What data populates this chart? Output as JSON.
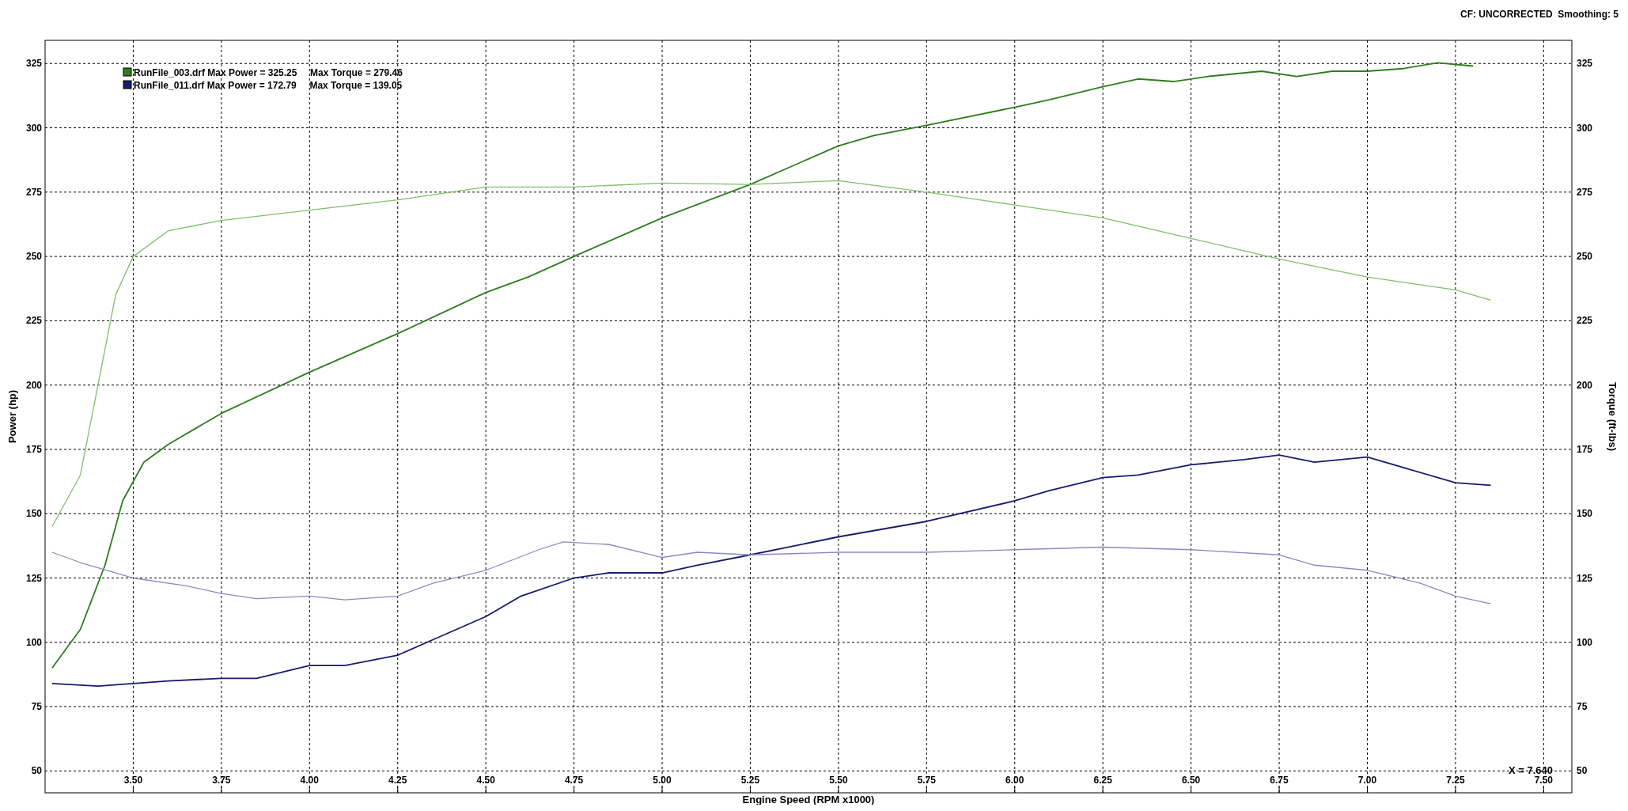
{
  "chart_data": {
    "type": "line",
    "xlabel": "Engine Speed (RPM x1000)",
    "ylabel": "Power (hp)",
    "y2label": "Torque (ft-lbs)",
    "annotations": [
      "CF: UNCORRECTED  Smoothing: 5",
      "X = 7.640"
    ],
    "xlim": [
      3.25,
      7.58
    ],
    "ylim": [
      41.5,
      334
    ],
    "y2lim": [
      41.5,
      334
    ],
    "xticks": [
      {
        "value": 3.5,
        "label": "3.50"
      },
      {
        "value": 3.75,
        "label": "3.75"
      },
      {
        "value": 4,
        "label": "4.00"
      },
      {
        "value": 4.25,
        "label": "4.25"
      },
      {
        "value": 4.5,
        "label": "4.50"
      },
      {
        "value": 4.75,
        "label": "4.75"
      },
      {
        "value": 5,
        "label": "5.00"
      },
      {
        "value": 5.25,
        "label": "5.25"
      },
      {
        "value": 5.5,
        "label": "5.50"
      },
      {
        "value": 5.75,
        "label": "5.75"
      },
      {
        "value": 6,
        "label": "6.00"
      },
      {
        "value": 6.25,
        "label": "6.25"
      },
      {
        "value": 6.5,
        "label": "6.50"
      },
      {
        "value": 6.75,
        "label": "6.75"
      },
      {
        "value": 7,
        "label": "7.00"
      },
      {
        "value": 7.25,
        "label": "7.25"
      },
      {
        "value": 7.5,
        "label": "7.50"
      }
    ],
    "yticks": [
      50,
      75,
      100,
      125,
      150,
      175,
      200,
      225,
      250,
      275,
      300,
      325
    ],
    "y2ticks": [
      50,
      75,
      100,
      125,
      150,
      175,
      200,
      225,
      250,
      275,
      300,
      325
    ],
    "grid": true,
    "legend": "top left",
    "line_style": "solid",
    "marker": "none",
    "series": [
      {
        "name": "RunFile_003.drf Max Power = 325.25     Max Torque = 279.46",
        "color": "#2e7d1e",
        "x": [
          3.27,
          3.35,
          3.42,
          3.47,
          3.53,
          3.6,
          3.75,
          4,
          4.25,
          4.5,
          4.62,
          4.75,
          5,
          5.25,
          5.5,
          5.6,
          5.75,
          6,
          6.1,
          6.25,
          6.35,
          6.45,
          6.55,
          6.7,
          6.8,
          6.9,
          7,
          7.1,
          7.2,
          7.3
        ],
        "values": [
          90,
          105,
          130,
          155,
          170,
          177,
          189,
          205,
          220,
          236,
          242,
          250,
          265,
          278,
          293,
          297,
          301,
          308,
          311,
          316,
          319,
          318,
          320,
          322,
          320,
          322,
          322,
          323,
          325.25,
          324
        ]
      },
      {
        "color": "#7fbf6a",
        "axis": "y2",
        "x": [
          3.27,
          3.35,
          3.4,
          3.45,
          3.5,
          3.6,
          3.75,
          4,
          4.25,
          4.5,
          4.75,
          5,
          5.25,
          5.5,
          5.75,
          6,
          6.25,
          6.5,
          6.75,
          7,
          7.25,
          7.35
        ],
        "values": [
          145,
          165,
          200,
          235,
          250,
          260,
          264,
          268,
          272,
          277,
          277,
          278.5,
          278,
          279.46,
          275,
          270,
          265,
          257,
          249,
          242,
          237,
          233
        ]
      },
      {
        "name": "RunFile_011.drf Max Power = 172.79     Max Torque = 139.05",
        "color": "#1a1a6e",
        "x": [
          3.27,
          3.4,
          3.5,
          3.6,
          3.75,
          3.85,
          4,
          4.1,
          4.25,
          4.35,
          4.5,
          4.6,
          4.75,
          4.85,
          5,
          5.1,
          5.25,
          5.5,
          5.75,
          6,
          6.1,
          6.25,
          6.35,
          6.5,
          6.65,
          6.75,
          6.85,
          7,
          7.1,
          7.25,
          7.35
        ],
        "values": [
          84,
          83,
          84,
          85,
          86,
          86,
          91,
          91,
          95,
          101,
          110,
          118,
          125,
          127,
          127,
          130,
          134,
          141,
          147,
          155,
          159,
          164,
          165,
          169,
          171,
          172.79,
          170,
          172,
          168,
          162,
          161
        ]
      },
      {
        "color": "#8a8ac0",
        "axis": "y2",
        "x": [
          3.27,
          3.35,
          3.5,
          3.65,
          3.75,
          3.85,
          4,
          4.1,
          4.25,
          4.35,
          4.5,
          4.65,
          4.72,
          4.85,
          5,
          5.1,
          5.25,
          5.5,
          5.75,
          6,
          6.25,
          6.5,
          6.75,
          6.85,
          7,
          7.15,
          7.25,
          7.35
        ],
        "values": [
          135,
          131,
          125,
          122,
          119,
          117,
          118,
          116.5,
          118,
          123,
          128,
          136,
          139.05,
          138,
          133,
          135,
          134,
          135,
          135,
          136,
          137,
          136,
          134,
          130,
          128,
          123,
          118,
          115
        ]
      }
    ]
  }
}
